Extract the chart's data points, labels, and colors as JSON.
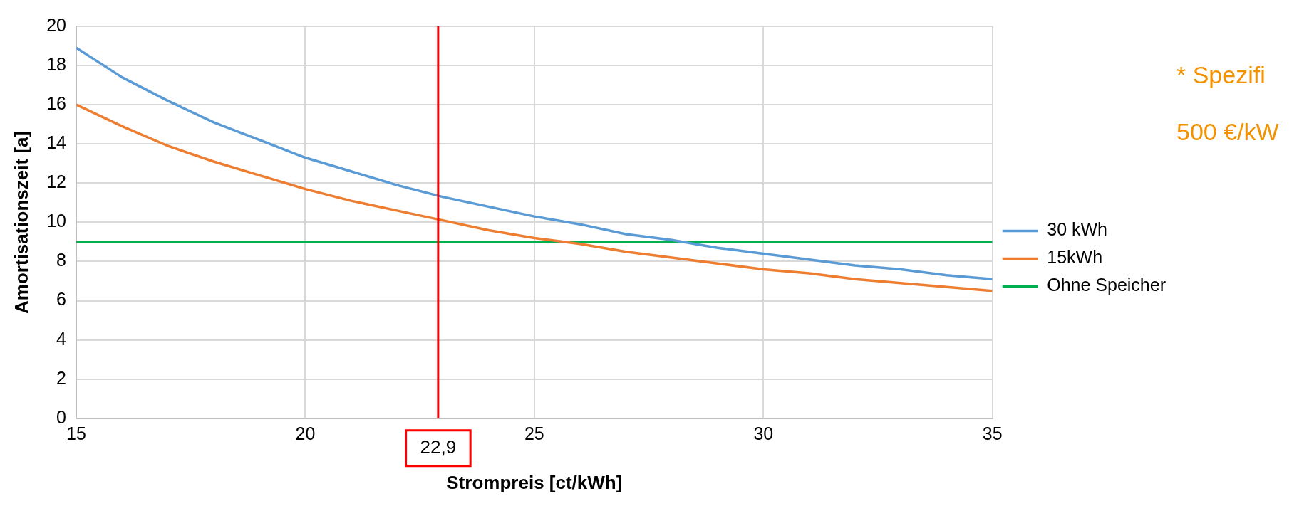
{
  "chart_data": {
    "type": "line",
    "xlabel": "Strompreis [ct/kWh]",
    "ylabel": "Amortisationszeit [a]",
    "x": [
      15,
      16,
      17,
      18,
      19,
      20,
      21,
      22,
      23,
      24,
      25,
      26,
      27,
      28,
      29,
      30,
      31,
      32,
      33,
      34,
      35
    ],
    "series": [
      {
        "name": "30 kWh",
        "color": "#5b9bd5",
        "values": [
          18.9,
          17.4,
          16.2,
          15.1,
          14.2,
          13.3,
          12.6,
          11.9,
          11.3,
          10.8,
          10.3,
          9.9,
          9.4,
          9.1,
          8.7,
          8.4,
          8.1,
          7.8,
          7.6,
          7.3,
          7.1
        ]
      },
      {
        "name": "15kWh",
        "color": "#ed7d31",
        "values": [
          16.0,
          14.9,
          13.9,
          13.1,
          12.4,
          11.7,
          11.1,
          10.6,
          10.1,
          9.6,
          9.2,
          8.9,
          8.5,
          8.2,
          7.9,
          7.6,
          7.4,
          7.1,
          6.9,
          6.7,
          6.5
        ]
      },
      {
        "name": "Ohne Speicher",
        "color": "#00b050",
        "values": [
          9,
          9,
          9,
          9,
          9,
          9,
          9,
          9,
          9,
          9,
          9,
          9,
          9,
          9,
          9,
          9,
          9,
          9,
          9,
          9,
          9
        ]
      }
    ],
    "xlim": [
      15,
      35
    ],
    "xticks": [
      15,
      20,
      25,
      30,
      35
    ],
    "ylim": [
      0,
      20
    ],
    "yticks": [
      0,
      2,
      4,
      6,
      8,
      10,
      12,
      14,
      16,
      18,
      20
    ],
    "ref_lines": [
      {
        "axis": "x",
        "value": 22.9,
        "label": "22,9",
        "color": "#ff0000"
      }
    ],
    "annotations": [
      "* Spezifi",
      "500 €/kW"
    ],
    "grid": true,
    "legend": "right",
    "marker": "none",
    "line_style": "solid"
  }
}
